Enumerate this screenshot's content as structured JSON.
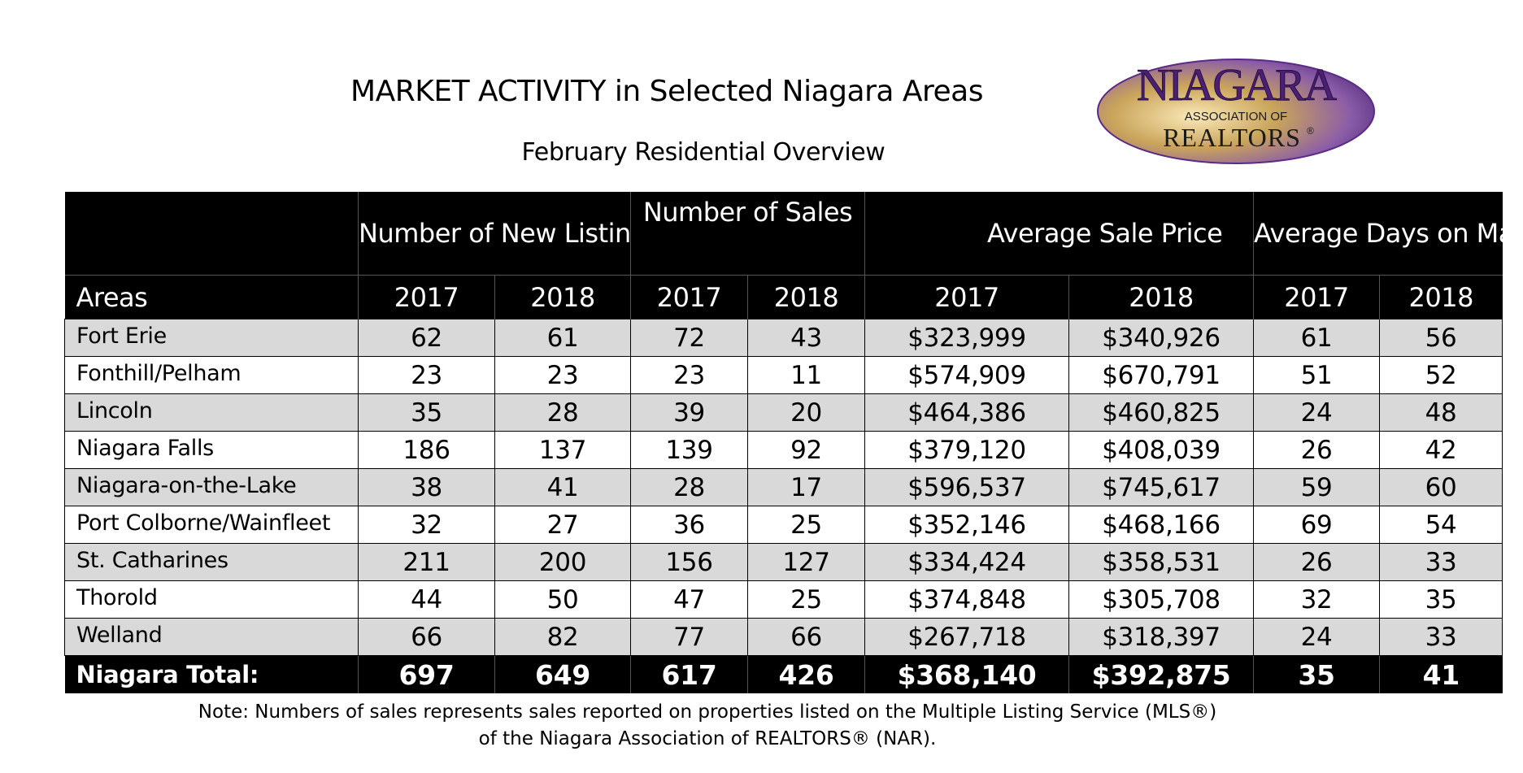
{
  "title": "MARKET ACTIVITY in Selected Niagara Areas",
  "subtitle": "February Residential Overview",
  "logo": {
    "line1": "NIAGARA",
    "line2": "ASSOCIATION OF",
    "line3": "REALTORS",
    "reg": "®"
  },
  "table": {
    "group_headers": [
      "Number of New Listings",
      "Number of Sales",
      "Average Sale Price",
      "Average Days on Market"
    ],
    "areas_label": "Areas",
    "years": [
      "2017",
      "2018",
      "2017",
      "2018",
      "2017",
      "2018",
      "2017",
      "2018"
    ],
    "rows": [
      {
        "area": "Fort Erie",
        "values": [
          "62",
          "61",
          "72",
          "43",
          "$323,999",
          "$340,926",
          "61",
          "56"
        ]
      },
      {
        "area": "Fonthill/Pelham",
        "values": [
          "23",
          "23",
          "23",
          "11",
          "$574,909",
          "$670,791",
          "51",
          "52"
        ]
      },
      {
        "area": "Lincoln",
        "values": [
          "35",
          "28",
          "39",
          "20",
          "$464,386",
          "$460,825",
          "24",
          "48"
        ]
      },
      {
        "area": "Niagara Falls",
        "values": [
          "186",
          "137",
          "139",
          "92",
          "$379,120",
          "$408,039",
          "26",
          "42"
        ]
      },
      {
        "area": "Niagara-on-the-Lake",
        "values": [
          "38",
          "41",
          "28",
          "17",
          "$596,537",
          "$745,617",
          "59",
          "60"
        ]
      },
      {
        "area": "Port Colborne/Wainfleet",
        "values": [
          "32",
          "27",
          "36",
          "25",
          "$352,146",
          "$468,166",
          "69",
          "54"
        ]
      },
      {
        "area": "St. Catharines",
        "values": [
          "211",
          "200",
          "156",
          "127",
          "$334,424",
          "$358,531",
          "26",
          "33"
        ]
      },
      {
        "area": "Thorold",
        "values": [
          "44",
          "50",
          "47",
          "25",
          "$374,848",
          "$305,708",
          "32",
          "35"
        ]
      },
      {
        "area": "Welland",
        "values": [
          "66",
          "82",
          "77",
          "66",
          "$267,718",
          "$318,397",
          "24",
          "33"
        ]
      }
    ],
    "total": {
      "area": "Niagara Total:",
      "values": [
        "697",
        "649",
        "617",
        "426",
        "$368,140",
        "$392,875",
        "35",
        "41"
      ]
    }
  },
  "note": {
    "line1": "Note: Numbers of sales represents sales reported on properties listed on the Multiple Listing Service (MLS®)",
    "line2": "of the Niagara Association of REALTORS® (NAR)."
  },
  "colors": {
    "header_bg": "#000000",
    "shade_row": "#d9d9d9",
    "logo_purple": "#5b2a86",
    "logo_gold": "#c9a45a"
  }
}
